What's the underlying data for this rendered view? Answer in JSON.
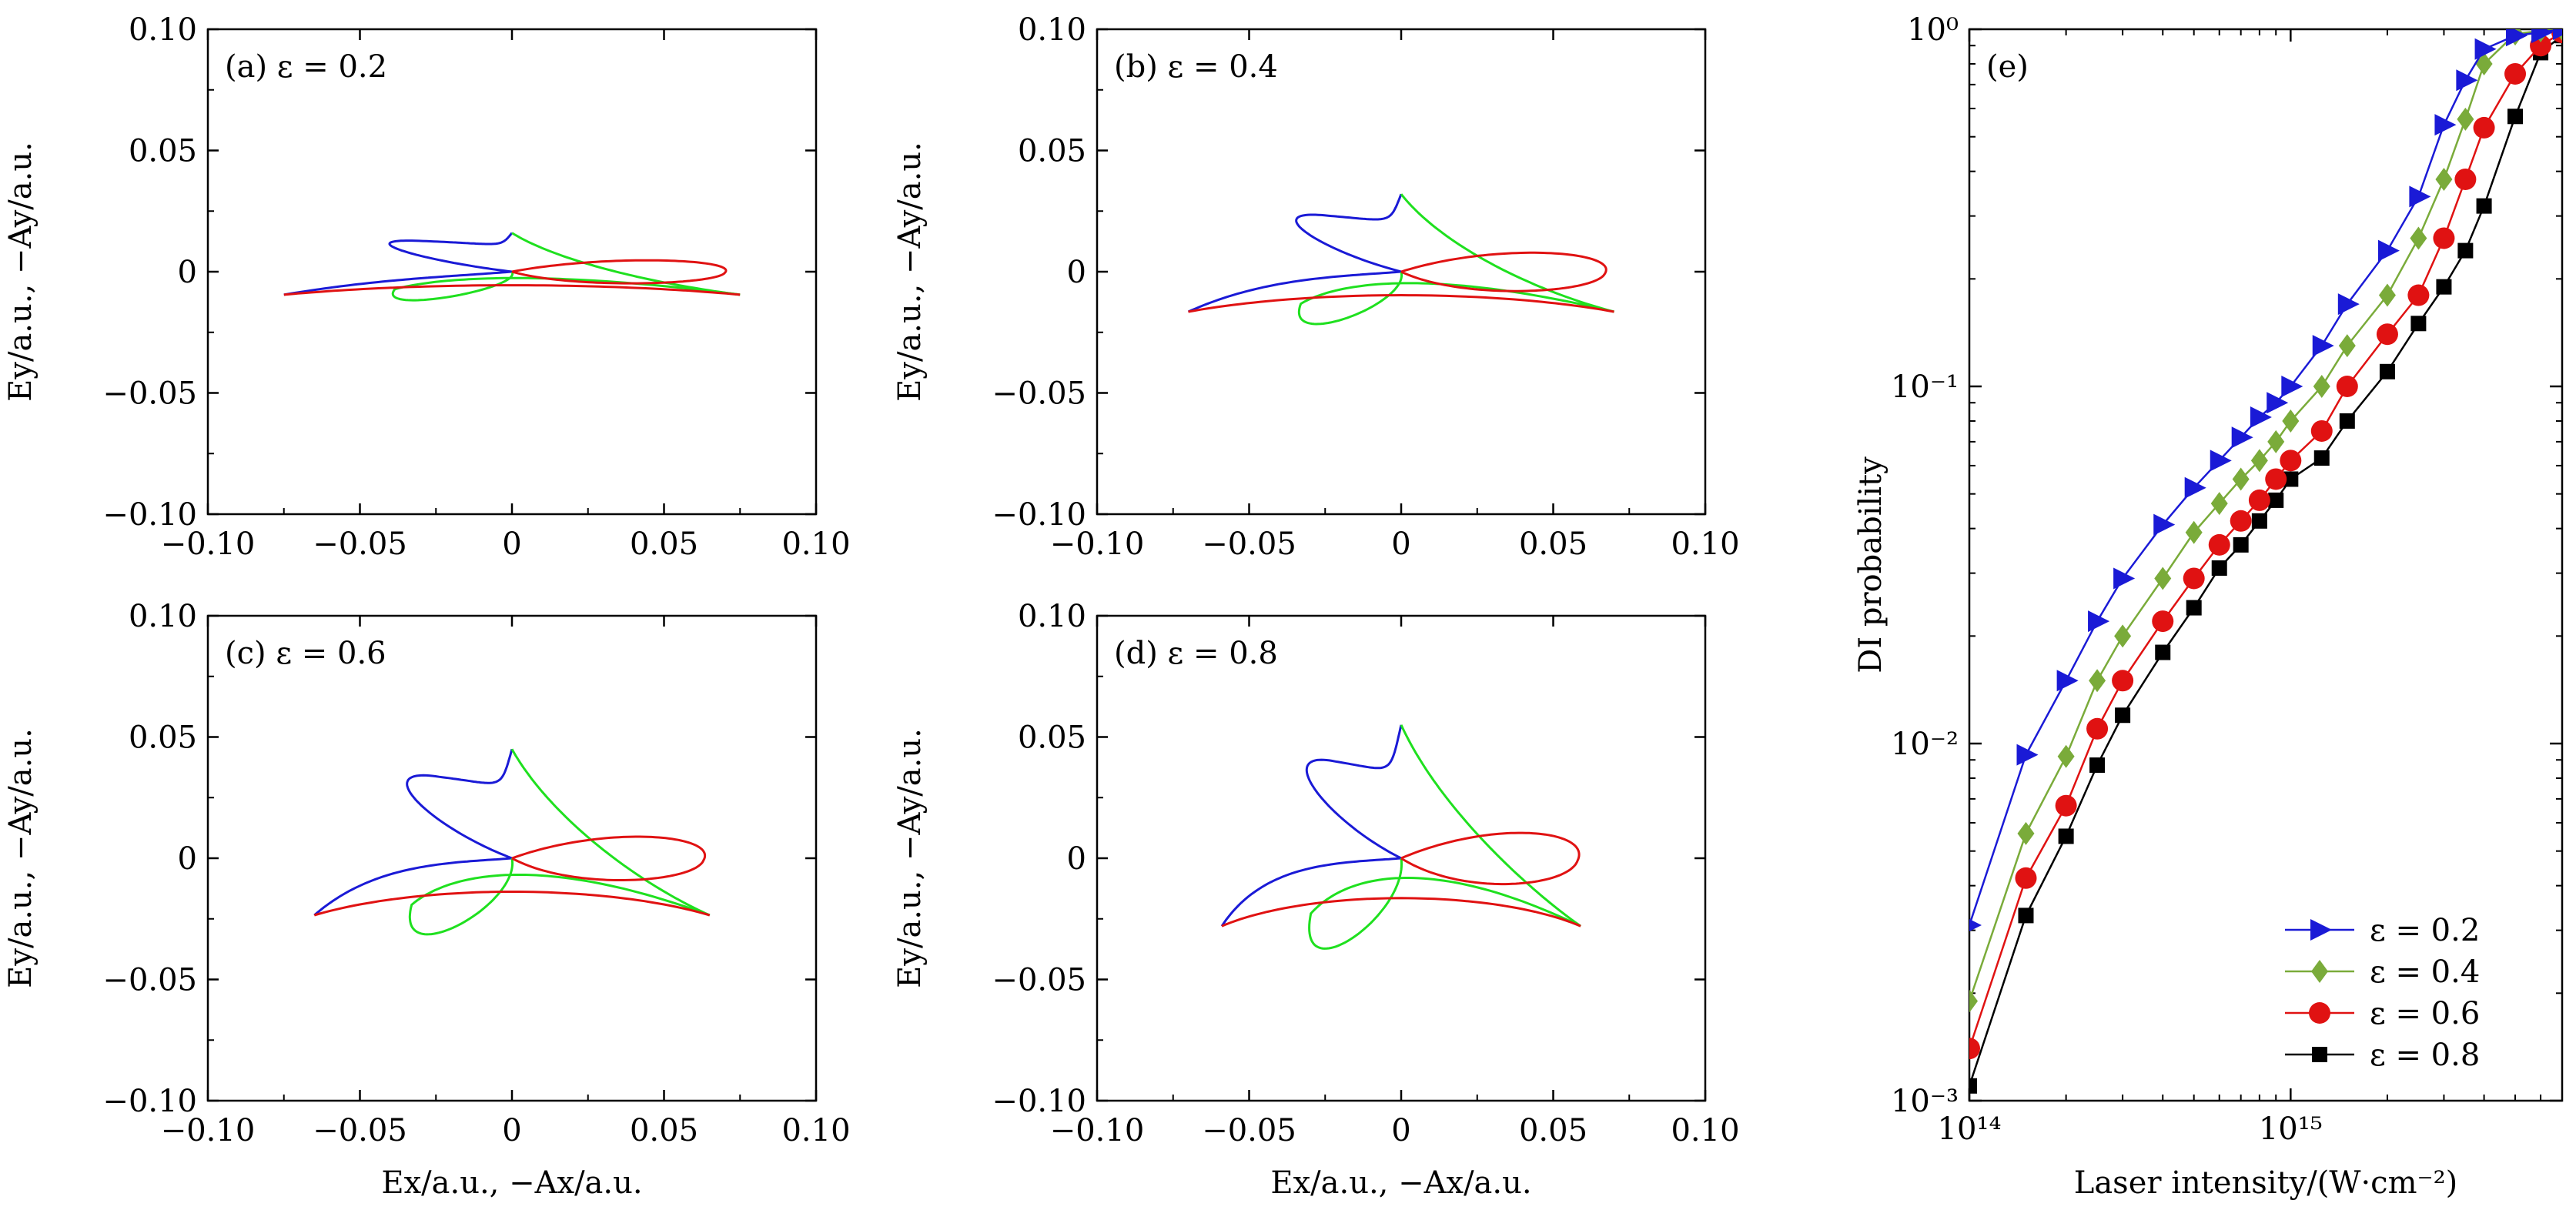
{
  "colors": {
    "blue": "#1a1ad6",
    "green": "#1fe01f",
    "red": "#e01212",
    "olive": "#7aab3a",
    "black": "#000000"
  },
  "charts": [
    {
      "label": "(a) ε = 0.2",
      "epsilon": 0.2,
      "xlim": [
        -0.1,
        0.1
      ],
      "ylim": [
        -0.1,
        0.1
      ],
      "xticks": [
        "−0.10",
        "−0.05",
        "0",
        "0.05",
        "0.10"
      ],
      "yticks": [
        "0.10",
        "0.05",
        "0",
        "−0.05",
        "−0.10"
      ],
      "ylabel": "Ey/a.u.,  −Ay/a.u.",
      "xlabel": ""
    },
    {
      "label": "(b) ε = 0.4",
      "epsilon": 0.4,
      "xlim": [
        -0.1,
        0.1
      ],
      "ylim": [
        -0.1,
        0.1
      ],
      "xticks": [
        "−0.10",
        "−0.05",
        "0",
        "0.05",
        "0.10"
      ],
      "yticks": [
        "0.10",
        "0.05",
        "0",
        "−0.05",
        "−0.10"
      ],
      "ylabel": "Ey/a.u.,  −Ay/a.u.",
      "xlabel": ""
    },
    {
      "label": "(c) ε = 0.6",
      "epsilon": 0.6,
      "xlim": [
        -0.1,
        0.1
      ],
      "ylim": [
        -0.1,
        0.1
      ],
      "xticks": [
        "−0.10",
        "−0.05",
        "0",
        "0.05",
        "0.10"
      ],
      "yticks": [
        "0.10",
        "0.05",
        "0",
        "−0.05",
        "−0.10"
      ],
      "ylabel": "Ey/a.u.,  −Ay/a.u.",
      "xlabel": "Ex/a.u.,  −Ax/a.u."
    },
    {
      "label": "(d) ε = 0.8",
      "epsilon": 0.8,
      "xlim": [
        -0.1,
        0.1
      ],
      "ylim": [
        -0.1,
        0.1
      ],
      "xticks": [
        "−0.10",
        "−0.05",
        "0",
        "0.05",
        "0.10"
      ],
      "yticks": [
        "0.10",
        "0.05",
        "0",
        "−0.05",
        "−0.10"
      ],
      "ylabel": "Ey/a.u.,  −Ay/a.u.",
      "xlabel": "Ex/a.u.,  −Ax/a.u."
    }
  ],
  "chart_data": [
    {
      "type": "line",
      "title": "(a) ε = 0.2",
      "series": [
        {
          "color": "blue",
          "points": [
            [
              0.0,
              0.016
            ],
            [
              -0.024,
              0.005
            ],
            [
              -0.034,
              0.012
            ],
            [
              -0.006,
              0.0
            ],
            [
              -0.075,
              -0.009
            ]
          ]
        },
        {
          "color": "green",
          "points": [
            [
              0.0,
              0.016
            ],
            [
              0.024,
              0.005
            ],
            [
              -0.035,
              -0.011
            ],
            [
              0.006,
              0.0
            ],
            [
              0.074,
              -0.009
            ]
          ]
        },
        {
          "color": "red",
          "points": [
            [
              -0.075,
              -0.009
            ],
            [
              0.07,
              0.0
            ],
            [
              0.074,
              -0.009
            ]
          ]
        }
      ]
    },
    {
      "type": "line",
      "title": "(b) ε = 0.4",
      "series": [
        {
          "color": "blue",
          "points": [
            [
              0.0,
              0.032
            ],
            [
              -0.035,
              0.015
            ],
            [
              -0.006,
              0.0
            ],
            [
              -0.07,
              -0.016
            ]
          ]
        },
        {
          "color": "green",
          "points": [
            [
              0.0,
              0.032
            ],
            [
              -0.035,
              -0.016
            ],
            [
              0.006,
              0.0
            ],
            [
              0.07,
              -0.016
            ]
          ]
        },
        {
          "color": "red",
          "points": [
            [
              -0.07,
              -0.016
            ],
            [
              0.067,
              0.0
            ],
            [
              0.07,
              -0.016
            ]
          ]
        }
      ]
    },
    {
      "type": "line",
      "title": "(c) ε = 0.6",
      "series": [
        {
          "color": "blue",
          "points": [
            [
              0.0,
              0.045
            ],
            [
              -0.035,
              0.02
            ],
            [
              -0.006,
              0.0
            ],
            [
              -0.065,
              -0.023
            ]
          ]
        },
        {
          "color": "green",
          "points": [
            [
              0.0,
              0.045
            ],
            [
              -0.035,
              -0.022
            ],
            [
              0.006,
              0.0
            ],
            [
              0.065,
              -0.023
            ]
          ]
        },
        {
          "color": "red",
          "points": [
            [
              -0.065,
              -0.023
            ],
            [
              0.063,
              0.0
            ],
            [
              0.065,
              -0.023
            ]
          ]
        }
      ]
    },
    {
      "type": "line",
      "title": "(d) ε = 0.8",
      "series": [
        {
          "color": "blue",
          "points": [
            [
              0.0,
              0.055
            ],
            [
              -0.034,
              0.025
            ],
            [
              -0.006,
              0.0
            ],
            [
              -0.059,
              -0.028
            ]
          ]
        },
        {
          "color": "green",
          "points": [
            [
              0.0,
              0.055
            ],
            [
              -0.034,
              -0.027
            ],
            [
              0.006,
              0.0
            ],
            [
              0.059,
              -0.028
            ]
          ]
        },
        {
          "color": "red",
          "points": [
            [
              -0.059,
              -0.028
            ],
            [
              0.058,
              0.0
            ],
            [
              0.059,
              -0.028
            ]
          ]
        }
      ]
    },
    {
      "type": "line",
      "title": "(e)",
      "xlabel": "Laser intensity/(W·cm⁻²)",
      "ylabel": "DI probability",
      "xscale": "log",
      "yscale": "log",
      "xlim": [
        100000000000000.0,
        7000000000000000.0
      ],
      "ylim": [
        0.001,
        1
      ],
      "xtick_labels": [
        "10¹⁴",
        "10¹⁵"
      ],
      "ytick_labels": [
        "10⁰",
        "10⁻¹",
        "10⁻²",
        "10⁻³"
      ],
      "legend_position": "bottom-right",
      "series": [
        {
          "name": "ε = 0.2",
          "color": "blue",
          "marker": "triangle-right",
          "x": [
            100000000000000.0,
            150000000000000.0,
            200000000000000.0,
            250000000000000.0,
            300000000000000.0,
            400000000000000.0,
            500000000000000.0,
            600000000000000.0,
            700000000000000.0,
            800000000000000.0,
            900000000000000.0,
            1000000000000000.0,
            1250000000000000.0,
            1500000000000000.0,
            2000000000000000.0,
            2500000000000000.0,
            3000000000000000.0,
            3500000000000000.0,
            4000000000000000.0,
            5000000000000000.0,
            6000000000000000.0,
            7000000000000000.0
          ],
          "y": [
            0.0031,
            0.0093,
            0.015,
            0.022,
            0.029,
            0.041,
            0.052,
            0.062,
            0.072,
            0.082,
            0.09,
            0.1,
            0.13,
            0.17,
            0.24,
            0.34,
            0.54,
            0.72,
            0.88,
            0.96,
            0.98,
            1.0
          ]
        },
        {
          "name": "ε = 0.4",
          "color": "olive",
          "marker": "diamond",
          "x": [
            100000000000000.0,
            150000000000000.0,
            200000000000000.0,
            250000000000000.0,
            300000000000000.0,
            400000000000000.0,
            500000000000000.0,
            600000000000000.0,
            700000000000000.0,
            800000000000000.0,
            900000000000000.0,
            1000000000000000.0,
            1250000000000000.0,
            1500000000000000.0,
            2000000000000000.0,
            2500000000000000.0,
            3000000000000000.0,
            3500000000000000.0,
            4000000000000000.0,
            5000000000000000.0,
            6000000000000000.0,
            7000000000000000.0
          ],
          "y": [
            0.0019,
            0.0056,
            0.0092,
            0.015,
            0.02,
            0.029,
            0.039,
            0.047,
            0.055,
            0.062,
            0.07,
            0.08,
            0.1,
            0.13,
            0.18,
            0.26,
            0.38,
            0.56,
            0.8,
            0.97,
            0.99,
            1.0
          ]
        },
        {
          "name": "ε = 0.6",
          "color": "red",
          "marker": "circle",
          "x": [
            100000000000000.0,
            150000000000000.0,
            200000000000000.0,
            250000000000000.0,
            300000000000000.0,
            400000000000000.0,
            500000000000000.0,
            600000000000000.0,
            700000000000000.0,
            800000000000000.0,
            900000000000000.0,
            1000000000000000.0,
            1250000000000000.0,
            1500000000000000.0,
            2000000000000000.0,
            2500000000000000.0,
            3000000000000000.0,
            3500000000000000.0,
            4000000000000000.0,
            5000000000000000.0,
            6000000000000000.0,
            7000000000000000.0
          ],
          "y": [
            0.0014,
            0.0042,
            0.0067,
            0.011,
            0.015,
            0.022,
            0.029,
            0.036,
            0.042,
            0.048,
            0.055,
            0.062,
            0.075,
            0.1,
            0.14,
            0.18,
            0.26,
            0.38,
            0.53,
            0.75,
            0.9,
            0.98
          ]
        },
        {
          "name": "ε = 0.8",
          "color": "black",
          "marker": "square",
          "x": [
            100000000000000.0,
            150000000000000.0,
            200000000000000.0,
            250000000000000.0,
            300000000000000.0,
            400000000000000.0,
            500000000000000.0,
            600000000000000.0,
            700000000000000.0,
            800000000000000.0,
            900000000000000.0,
            1000000000000000.0,
            1250000000000000.0,
            1500000000000000.0,
            2000000000000000.0,
            2500000000000000.0,
            3000000000000000.0,
            3500000000000000.0,
            4000000000000000.0,
            5000000000000000.0,
            6000000000000000.0,
            7000000000000000.0
          ],
          "y": [
            0.0011,
            0.0033,
            0.0055,
            0.0087,
            0.012,
            0.018,
            0.024,
            0.031,
            0.036,
            0.042,
            0.048,
            0.055,
            0.063,
            0.08,
            0.11,
            0.15,
            0.19,
            0.24,
            0.32,
            0.57,
            0.86,
            0.96
          ]
        }
      ]
    }
  ]
}
